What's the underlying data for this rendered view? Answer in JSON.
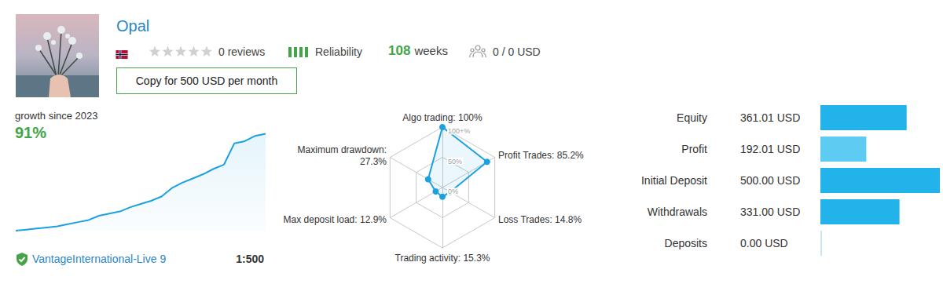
{
  "header": {
    "name": "Opal",
    "reviews": "0 reviews",
    "reliability": "Reliability",
    "weeks": {
      "value": "108",
      "unit": "weeks"
    },
    "subscribers": "0 / 0 USD",
    "button": "Copy for 500 USD per month"
  },
  "footer": {
    "server": "VantageInternational-Live 9",
    "leverage": "1:500"
  },
  "chart_data": [
    {
      "type": "line",
      "title": "growth since 2023",
      "subtitle": "91%",
      "values": [
        0,
        1,
        2,
        3,
        4,
        6,
        8,
        10,
        14,
        16,
        18,
        22,
        25,
        28,
        32,
        40,
        45,
        49,
        53,
        58,
        62,
        82,
        84,
        89,
        91
      ],
      "ylim": [
        0,
        95
      ],
      "tick_labels": false,
      "color": "#1ba1e2"
    },
    {
      "type": "radar",
      "categories": [
        "Algo trading: 100%",
        "Maximum drawdown: 27.3%",
        "Max deposit load: 12.9%",
        "Trading activity: 15.3%",
        "Loss Trades: 14.8%",
        "Profit Trades: 85.2%"
      ],
      "values": [
        100,
        27.3,
        12.9,
        15.3,
        14.8,
        85.2
      ],
      "ylim": [
        0,
        100
      ],
      "yticks": [
        {
          "value": 0,
          "label": "0%"
        },
        {
          "value": 50,
          "label": "50%"
        },
        {
          "value": 100,
          "label": "100+%"
        }
      ],
      "color": "#1ba1e2"
    },
    {
      "type": "bar",
      "orientation": "horizontal",
      "categories": [
        "Equity",
        "Profit",
        "Initial Deposit",
        "Withdrawals",
        "Deposits"
      ],
      "values": [
        361.01,
        192.01,
        500,
        331,
        0
      ],
      "value_labels": [
        "361.01 USD",
        "192.01 USD",
        "500.00 USD",
        "331.00 USD",
        "0.00 USD"
      ],
      "data_labels": true,
      "xlim": [
        0,
        500
      ],
      "tick_labels": "y",
      "colors": [
        "#22b3ea",
        "#5ecbf2",
        "#22b3ea",
        "#22b3ea",
        "#c9e7f3"
      ]
    }
  ]
}
